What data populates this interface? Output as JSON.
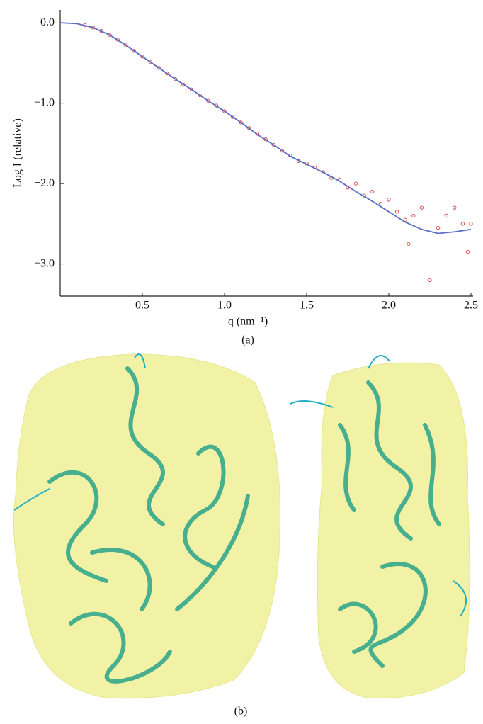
{
  "chart_data": {
    "type": "scatter",
    "ylabel": "Log I (relative)",
    "xlabel": "q (nm⁻¹)",
    "caption": "(a)",
    "xlim": [
      0,
      2.5
    ],
    "ylim": [
      -3.4,
      0.16
    ],
    "xticks": [
      0.5,
      {
        "value": 1,
        "label": "1.0"
      },
      1.5,
      {
        "value": 2,
        "label": "2.0"
      },
      2.5
    ],
    "yticks": [
      {
        "value": 0,
        "label": "0.0"
      },
      {
        "value": -1,
        "label": "−1.0"
      },
      {
        "value": -2,
        "label": "−2.0"
      },
      {
        "value": -3,
        "label": "−3.0"
      }
    ],
    "grid": false,
    "series": [
      {
        "type": "scatter",
        "color": "#e0504a",
        "x": [
          0.15,
          0.2,
          0.25,
          0.3,
          0.35,
          0.4,
          0.45,
          0.5,
          0.55,
          0.6,
          0.65,
          0.7,
          0.75,
          0.8,
          0.85,
          0.9,
          0.95,
          1.0,
          1.05,
          1.1,
          1.15,
          1.2,
          1.25,
          1.3,
          1.35,
          1.4,
          1.45,
          1.5,
          1.55,
          1.6,
          1.65,
          1.7,
          1.75,
          1.8,
          1.85,
          1.9,
          1.95,
          2.0,
          2.05,
          2.1,
          2.12,
          2.15,
          2.2,
          2.25,
          2.3,
          2.35,
          2.4,
          2.45,
          2.48,
          2.5
        ],
        "values": [
          -0.03,
          -0.06,
          -0.1,
          -0.15,
          -0.21,
          -0.28,
          -0.35,
          -0.42,
          -0.49,
          -0.56,
          -0.63,
          -0.7,
          -0.77,
          -0.83,
          -0.9,
          -0.97,
          -1.03,
          -1.1,
          -1.17,
          -1.24,
          -1.31,
          -1.38,
          -1.45,
          -1.52,
          -1.59,
          -1.65,
          -1.72,
          -1.75,
          -1.8,
          -1.86,
          -1.93,
          -1.95,
          -2.05,
          -2.0,
          -2.15,
          -2.1,
          -2.25,
          -2.2,
          -2.35,
          -2.45,
          -2.75,
          -2.4,
          -2.3,
          -3.2,
          -2.55,
          -2.4,
          -2.3,
          -2.5,
          -2.85,
          -2.5
        ]
      },
      {
        "type": "line",
        "color": "#5b6cc4",
        "x": [
          0,
          0.1,
          0.2,
          0.3,
          0.4,
          0.5,
          0.6,
          0.7,
          0.8,
          0.9,
          1.0,
          1.1,
          1.2,
          1.3,
          1.4,
          1.5,
          1.6,
          1.7,
          1.8,
          1.9,
          2.0,
          2.1,
          2.2,
          2.3,
          2.4,
          2.5
        ],
        "values": [
          0,
          -0.01,
          -0.06,
          -0.15,
          -0.28,
          -0.42,
          -0.56,
          -0.7,
          -0.83,
          -0.97,
          -1.1,
          -1.24,
          -1.39,
          -1.52,
          -1.66,
          -1.76,
          -1.86,
          -1.97,
          -2.1,
          -2.22,
          -2.35,
          -2.48,
          -2.57,
          -2.62,
          -2.6,
          -2.57
        ]
      }
    ]
  },
  "figure_b": {
    "caption": "(b)"
  }
}
